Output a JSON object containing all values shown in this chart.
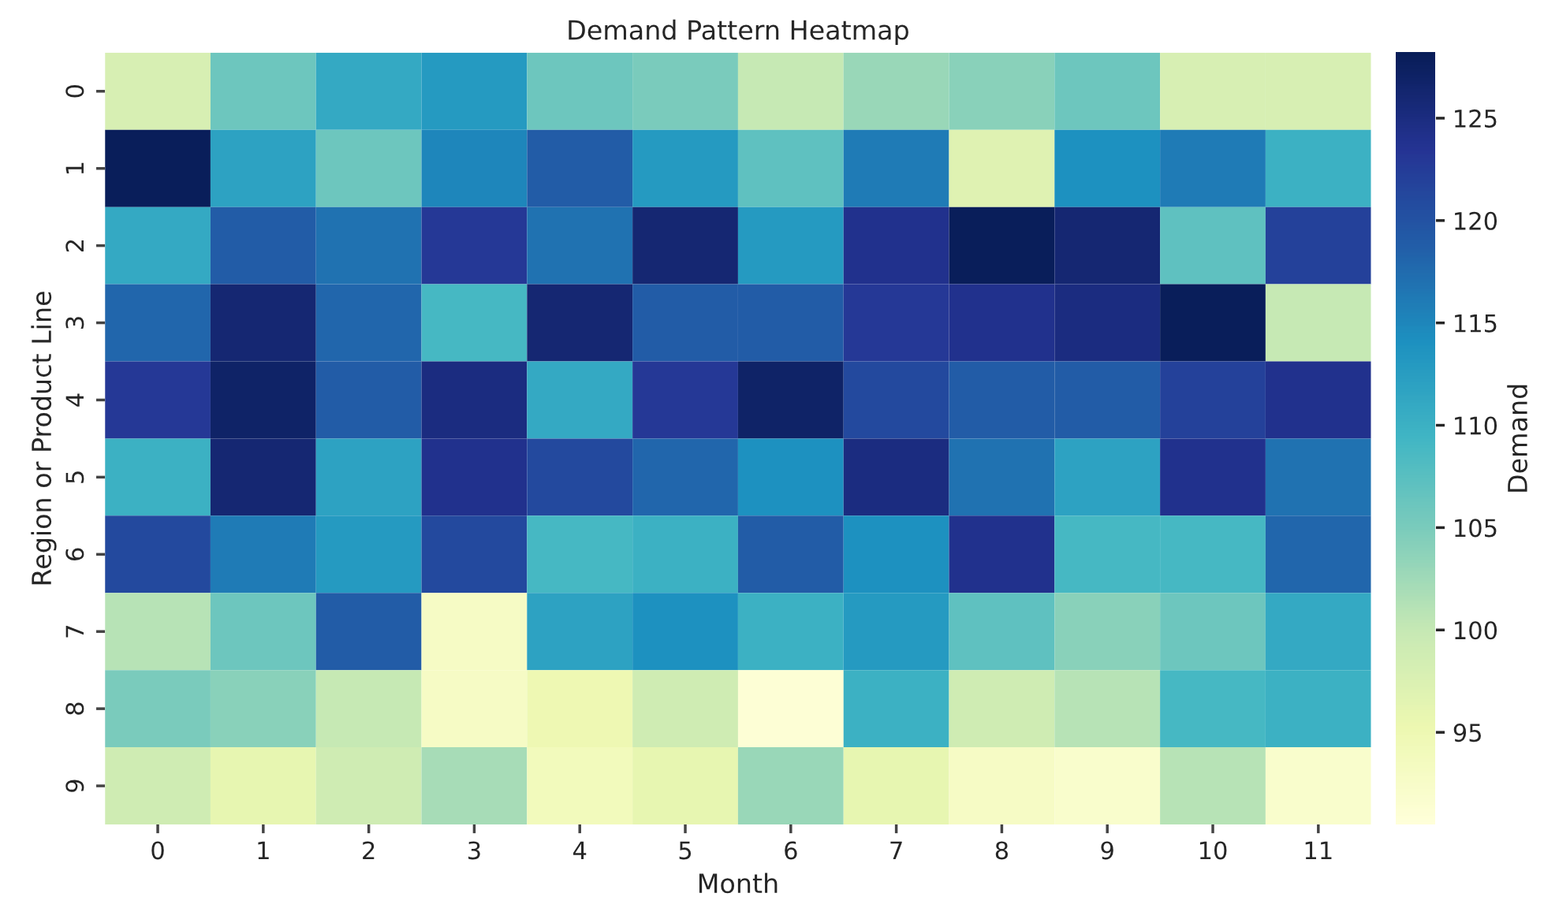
{
  "chart_data": {
    "type": "heatmap",
    "title": "Demand Pattern Heatmap",
    "xlabel": "Month",
    "ylabel": "Region or Product Line",
    "clabel": "Demand",
    "categories": [
      "0",
      "1",
      "2",
      "3",
      "4",
      "5",
      "6",
      "7",
      "8",
      "9",
      "10",
      "11"
    ],
    "y_categories": [
      "0",
      "1",
      "2",
      "3",
      "4",
      "5",
      "6",
      "7",
      "8",
      "9"
    ],
    "cells": [
      [
        98,
        106,
        111,
        113,
        106,
        105,
        100,
        103,
        104,
        106,
        98,
        98
      ],
      [
        128,
        112,
        106,
        115,
        119,
        113,
        107,
        116,
        97,
        114,
        116,
        110
      ],
      [
        111,
        119,
        117,
        123,
        117,
        126,
        113,
        124,
        128,
        126,
        107,
        122
      ],
      [
        118,
        126,
        118,
        109,
        126,
        119,
        119,
        123,
        124,
        125,
        128,
        100
      ],
      [
        123,
        127,
        119,
        125,
        111,
        123,
        127,
        121,
        119,
        119,
        122,
        124
      ],
      [
        110,
        126,
        112,
        124,
        121,
        118,
        114,
        125,
        117,
        112,
        124,
        117
      ],
      [
        121,
        116,
        113,
        121,
        109,
        110,
        119,
        114,
        124,
        109,
        109,
        118
      ],
      [
        101,
        106,
        119,
        93,
        112,
        114,
        110,
        113,
        107,
        104,
        106,
        111
      ],
      [
        105,
        104,
        100,
        93,
        95,
        99,
        91,
        110,
        99,
        101,
        109,
        110
      ],
      [
        99,
        96,
        99,
        102,
        94,
        96,
        103,
        96,
        93,
        92,
        101,
        92
      ]
    ],
    "clim": [
      90.5,
      128.2
    ],
    "cticks": [
      95,
      100,
      105,
      110,
      115,
      120,
      125
    ]
  }
}
